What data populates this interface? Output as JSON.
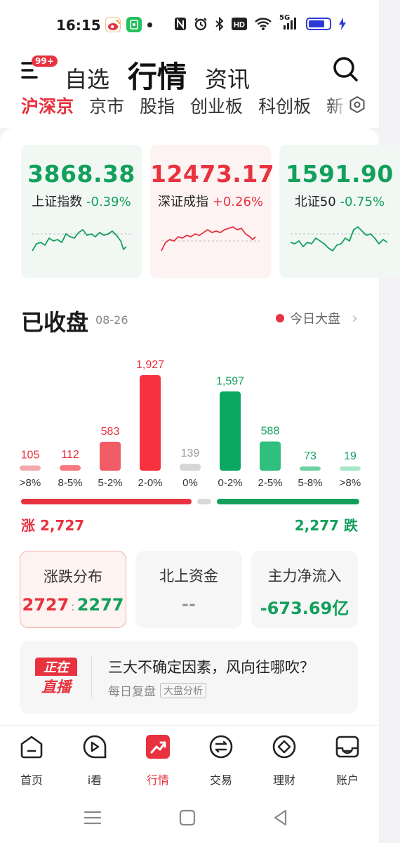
{
  "status_bar": {
    "time": "16:15",
    "left_icons": [
      "weibo-icon",
      "wechat-mini-icon",
      "dot-icon"
    ],
    "right_icons": [
      "nfc-icon",
      "alarm-icon",
      "bluetooth-icon",
      "hd-icon",
      "wifi-icon",
      "signal-5g-icon",
      "battery-icon",
      "charging-icon"
    ],
    "signal_label": "5G"
  },
  "header": {
    "menu_badge": "99+",
    "tabs": [
      {
        "label": "自选",
        "active": false
      },
      {
        "label": "行情",
        "active": true
      },
      {
        "label": "资讯",
        "active": false
      }
    ],
    "sub_tabs": [
      {
        "label": "沪深京",
        "active": true
      },
      {
        "label": "京市",
        "active": false
      },
      {
        "label": "股指",
        "active": false
      },
      {
        "label": "创业板",
        "active": false
      },
      {
        "label": "科创板",
        "active": false
      },
      {
        "label": "新",
        "active": false
      }
    ]
  },
  "indices": [
    {
      "value": "3868.38",
      "name": "上证指数",
      "change": "-0.39%",
      "trend": "down"
    },
    {
      "value": "12473.17",
      "name": "深证成指",
      "change": "+0.26%",
      "trend": "up"
    },
    {
      "value": "1591.90",
      "name": "北证50",
      "change": "-0.75%",
      "trend": "down"
    }
  ],
  "market": {
    "status": "已收盘",
    "date": "08-26",
    "link": "今日大盘",
    "rise_total": "涨 2,727",
    "fall_total": "2,277 跌",
    "rise_count": 2727,
    "fall_count": 2277,
    "flat_count": 139
  },
  "chart_data": {
    "type": "bar",
    "categories": [
      ">8%",
      "8-5%",
      "5-2%",
      "2-0%",
      "0%",
      "0-2%",
      "2-5%",
      "5-8%",
      ">8%"
    ],
    "values": [
      105,
      112,
      583,
      1927,
      139,
      1597,
      588,
      73,
      19
    ],
    "colors": [
      "#f6a9ad",
      "#f57a82",
      "#f25c66",
      "#f7323e",
      "#d6d6d6",
      "#0ba862",
      "#2fbf7e",
      "#6ed2a0",
      "#a7e6c6"
    ],
    "value_colors": [
      "#e8323f",
      "#e8323f",
      "#e8323f",
      "#e8323f",
      "#999999",
      "#12a05c",
      "#12a05c",
      "#12a05c",
      "#12a05c"
    ],
    "ylim": [
      0,
      1927
    ]
  },
  "stats": [
    {
      "title": "涨跌分布",
      "value_rise": "2727",
      "value_fall": "2277",
      "active": true
    },
    {
      "title": "北上资金",
      "value": "--",
      "active": false
    },
    {
      "title": "主力净流入",
      "value": "-673.69亿",
      "active": false
    }
  ],
  "live": {
    "badge_line1": "正在",
    "badge_line2": "直播",
    "title": "三大不确定因素，风向往哪吹？",
    "subtitle": "每日复盘",
    "tag": "大盘分析"
  },
  "tabbar": [
    {
      "label": "首页",
      "icon": "home-icon",
      "active": false
    },
    {
      "label": "i看",
      "icon": "play-icon",
      "active": false
    },
    {
      "label": "行情",
      "icon": "trend-icon",
      "active": true
    },
    {
      "label": "交易",
      "icon": "trade-icon",
      "active": false
    },
    {
      "label": "理财",
      "icon": "wealth-icon",
      "active": false
    },
    {
      "label": "账户",
      "icon": "account-icon",
      "active": false
    }
  ],
  "colors": {
    "rise": "#e8323f",
    "fall": "#12a05c",
    "flat": "#d9d9d9"
  }
}
